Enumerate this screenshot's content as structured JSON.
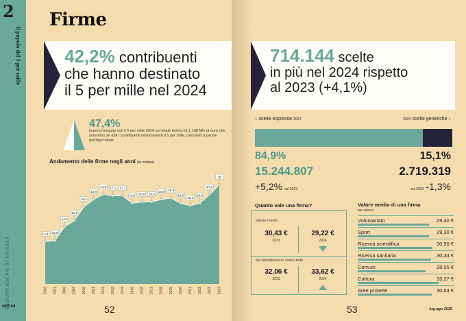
{
  "colors": {
    "teal": "#6aa89a",
    "navy": "#23233a",
    "paper": "#f5dcae"
  },
  "left": {
    "section_number": "2",
    "vertical_title": "Il popolo del 5 per mille",
    "vertical_footer": "5 PER MILLE: SIA PER DAVVERO",
    "footer_logo": "NOT-08",
    "title": "Firme",
    "headline_pct": "42,2%",
    "headline_line1": " contribuenti",
    "headline_line2": "che hanno destinato",
    "headline_line3": "il 5 per mille nel 2024",
    "stat_pct": "47,4%",
    "stat_desc": "importo erogato con il 5 per mille 2024 sul totale teorico di 1.108 Mln di euro che avremmo se tutti i contribuenti destinassero il 5 per mille, calcolato a partire dall'Irpef totale",
    "chart_title": "Andamento delle firme negli anni",
    "chart_unit": "(in milioni)",
    "page_number": "52"
  },
  "chart_data": {
    "type": "area",
    "title": "Andamento delle firme negli anni",
    "unit": "(in milioni)",
    "x": [
      "2006",
      "2007",
      "2008",
      "2009",
      "2010",
      "2011",
      "2012",
      "2013",
      "2014",
      "2015",
      "2016",
      "2017",
      "2018",
      "2019",
      "2020",
      "2021",
      "2022",
      "2023",
      "2024"
    ],
    "values": [
      13.4,
      13.5,
      14.6,
      15.1,
      16.2,
      16.8,
      17.2,
      17.1,
      17.1,
      16.5,
      16.6,
      16.6,
      16.8,
      16.9,
      16.5,
      16.3,
      16.5,
      17.2,
      18
    ],
    "labels": [
      "13,4",
      "13,5",
      "14,6",
      "15,1",
      "16,2",
      "16,8",
      "17,2",
      "17,1",
      "17,1",
      "16,5",
      "16,6",
      "16,6",
      "16,8",
      "16,9",
      "16,5",
      "16,3",
      "16,5",
      "17,2",
      "18"
    ],
    "ylim": [
      10,
      18.5
    ],
    "color": "#6aa89a"
  },
  "right": {
    "headline_num": "714.144",
    "headline_line1": " scelte",
    "headline_line2": "in più nel 2024 rispetto",
    "headline_line3": "al 2023 (+4,1%)",
    "label_left": "↓ scelte espresse",
    "label_left_year": "2024",
    "label_right_year": "2024",
    "label_right": "scelte generiche ↓",
    "bar_share_dark": 15.1,
    "pct_left": "84,9%",
    "pct_right": "15,1%",
    "num_left": "15.244.807",
    "num_right": "2.719.319",
    "var_left": "+5,2%",
    "var_left_note": "sul 2023",
    "var_right_note": "sul 2023",
    "var_right": "-1,3%",
    "quanto_title": "Quanto vale una firma?",
    "valore_medio": "Valore medio",
    "q1_a": "30,43 €",
    "q1_a_year": "2023",
    "q1_b": "29,22 €",
    "q1_b_year": "2024",
    "extra_label": "Se consideriamo l'extra tetto",
    "q2_a": "32,06 €",
    "q2_a_year": "2023",
    "q2_b": "33,62 €",
    "q2_b_year": "2024",
    "valore_title": "Valore medio di una firma",
    "valore_sub": "per elenco",
    "categories": [
      {
        "name": "Volontariato",
        "value": "29,40 €",
        "num": 29.4
      },
      {
        "name": "Sport",
        "value": "29,30 €",
        "num": 29.3
      },
      {
        "name": "Ricerca scientifica",
        "value": "30,96 €",
        "num": 30.96
      },
      {
        "name": "Ricerca sanitaria",
        "value": "30,34 €",
        "num": 30.34
      },
      {
        "name": "Comuni",
        "value": "28,05 €",
        "num": 28.05
      },
      {
        "name": "Cultura",
        "value": "33,27 €",
        "num": 33.27
      },
      {
        "name": "Aree protette",
        "value": "30,64 €",
        "num": 30.64
      }
    ],
    "page_number": "53",
    "footer": "lug-ago 2025"
  }
}
